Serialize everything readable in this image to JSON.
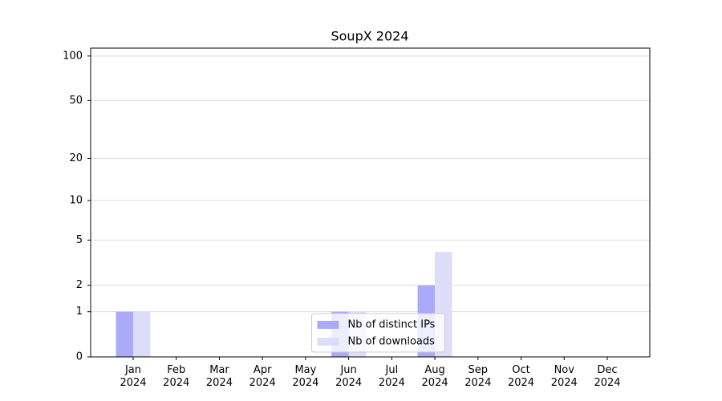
{
  "chart_data": {
    "type": "bar",
    "title": "SoupX 2024",
    "categories": [
      "Jan\n2024",
      "Feb\n2024",
      "Mar\n2024",
      "Apr\n2024",
      "May\n2024",
      "Jun\n2024",
      "Jul\n2024",
      "Aug\n2024",
      "Sep\n2024",
      "Oct\n2024",
      "Nov\n2024",
      "Dec\n2024"
    ],
    "series": [
      {
        "name": "Nb of distinct IPs",
        "color": "#aaaaf8",
        "values": [
          1,
          0,
          0,
          0,
          0,
          1,
          0,
          2,
          0,
          0,
          0,
          0
        ]
      },
      {
        "name": "Nb of downloads",
        "color": "#ddddfa",
        "values": [
          1,
          0,
          0,
          0,
          0,
          1,
          0,
          4,
          0,
          0,
          0,
          0
        ]
      }
    ],
    "yscale": "log1p",
    "ylim": [
      0,
      113
    ],
    "yticks": [
      0,
      1,
      2,
      5,
      10,
      20,
      50,
      100
    ],
    "grid": true,
    "legend": "lower center"
  }
}
